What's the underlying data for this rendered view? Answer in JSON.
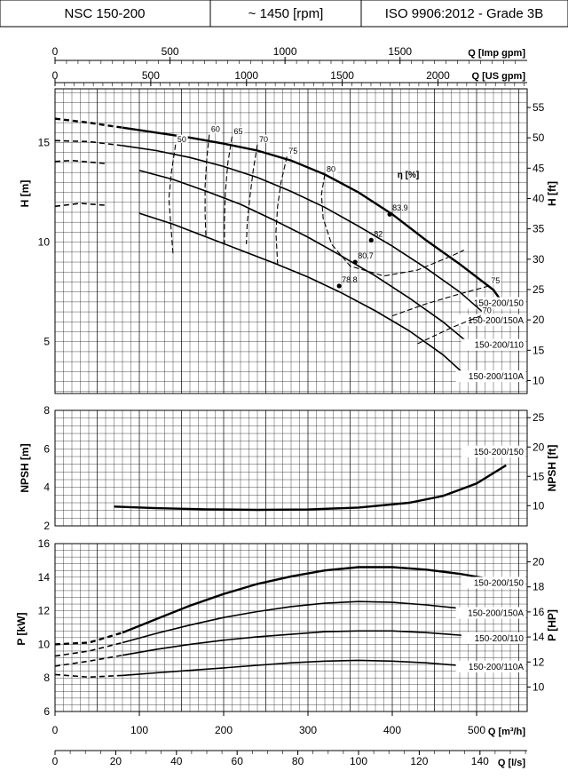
{
  "header": {
    "model": "NSC 150-200",
    "speed": "~ 1450 [rpm]",
    "standard": "ISO 9906:2012 - Grade 3B"
  },
  "colors": {
    "line": "#000000",
    "grid": "#000000",
    "background": "#ffffff"
  },
  "chart_data": [
    {
      "id": "head",
      "type": "line",
      "x_unit": "Q [m³/h]",
      "xlim": [
        0,
        560
      ],
      "ylim": [
        2.4,
        17.7
      ],
      "ylabel": "H [m]",
      "y_ticks": [
        5,
        10,
        15
      ],
      "y2label": "H [ft]",
      "y2_ticks": [
        10,
        15,
        20,
        25,
        30,
        35,
        40,
        45,
        50,
        55
      ],
      "top_axes": [
        {
          "label": "Q [Imp gpm]",
          "ticks": [
            0,
            500,
            1000,
            1500
          ]
        },
        {
          "label": "Q [US gpm]",
          "ticks": [
            0,
            500,
            1000,
            1500,
            2000
          ]
        }
      ],
      "efficiency_label": "η [%]",
      "series": [
        {
          "name": "150-200/150",
          "x": [
            0,
            40,
            80,
            120,
            160,
            200,
            240,
            280,
            320,
            360,
            400,
            440,
            480,
            520,
            535
          ],
          "y": [
            16.2,
            16.0,
            15.75,
            15.5,
            15.25,
            14.95,
            14.6,
            14.1,
            13.4,
            12.5,
            11.4,
            10.1,
            8.9,
            7.6,
            6.7
          ],
          "label_value": "150-200/150"
        },
        {
          "name": "150-200/150A",
          "x": [
            0,
            40,
            80,
            120,
            160,
            200,
            240,
            280,
            320,
            360,
            400,
            440,
            480,
            515
          ],
          "y": [
            15.1,
            15.05,
            14.85,
            14.6,
            14.25,
            13.8,
            13.25,
            12.55,
            11.75,
            10.8,
            9.8,
            8.7,
            7.5,
            6.2
          ],
          "label_value": "150-200/150A"
        },
        {
          "name": "150-200/110",
          "x": [
            0,
            20,
            60,
            100,
            140,
            180,
            220,
            260,
            300,
            340,
            380,
            420,
            460,
            500
          ],
          "y": [
            14.05,
            14.1,
            13.95,
            13.6,
            13.15,
            12.55,
            11.9,
            11.1,
            10.25,
            9.3,
            8.3,
            7.2,
            6.0,
            4.6
          ],
          "label_value": "150-200/110"
        },
        {
          "name": "150-200/110A",
          "x": [
            0,
            30,
            60,
            100,
            140,
            180,
            220,
            260,
            300,
            340,
            380,
            420,
            460,
            490
          ],
          "y": [
            11.8,
            11.95,
            11.85,
            11.45,
            10.9,
            10.25,
            9.6,
            8.95,
            8.25,
            7.45,
            6.55,
            5.55,
            4.35,
            3.2
          ],
          "label_value": "150-200/110A"
        }
      ],
      "series_dashed_prefix_x": 80,
      "efficiency_curves": [
        {
          "label": "50",
          "x": [
            143,
            138,
            135,
            137,
            140
          ],
          "y": [
            14.9,
            13.5,
            12.2,
            11.0,
            9.4
          ]
        },
        {
          "label": "60",
          "x": [
            183,
            180,
            178,
            178,
            179
          ],
          "y": [
            15.4,
            14.2,
            12.8,
            11.4,
            10.3
          ]
        },
        {
          "label": "65",
          "x": [
            210,
            205,
            202,
            201,
            201
          ],
          "y": [
            15.3,
            14.0,
            12.5,
            11.1,
            9.9
          ]
        },
        {
          "label": "70",
          "x": [
            240,
            235,
            231,
            228,
            227
          ],
          "y": [
            14.9,
            13.6,
            12.2,
            11.0,
            9.9
          ]
        },
        {
          "label": "75",
          "x": [
            275,
            268,
            264,
            262,
            264
          ],
          "y": [
            14.3,
            13.0,
            11.8,
            10.5,
            8.9
          ]
        },
        {
          "label": "80",
          "x": [
            320,
            316,
            318,
            328,
            350,
            390,
            430,
            470,
            485
          ],
          "y": [
            13.4,
            12.4,
            11.2,
            9.9,
            8.8,
            8.3,
            8.6,
            9.3,
            9.6
          ]
        },
        {
          "label": "75",
          "x": [
            400,
            440,
            480,
            515
          ],
          "y": [
            6.3,
            6.9,
            7.4,
            7.8
          ]
        },
        {
          "label": "70",
          "x": [
            430,
            470,
            505
          ],
          "y": [
            4.9,
            5.7,
            6.3
          ]
        }
      ],
      "bep_points": [
        {
          "label": "83.9",
          "x": 397,
          "y": 11.4
        },
        {
          "label": "82",
          "x": 375,
          "y": 10.1
        },
        {
          "label": "80.7",
          "x": 356,
          "y": 9.0
        },
        {
          "label": "78.8",
          "x": 337,
          "y": 7.8
        }
      ]
    },
    {
      "id": "npsh",
      "type": "line",
      "x_unit": "Q [m³/h]",
      "xlim": [
        0,
        560
      ],
      "ylim": [
        2,
        8
      ],
      "ylabel": "NPSH [m]",
      "y_ticks": [
        2,
        4,
        6,
        8
      ],
      "y2label": "NPSH [ft]",
      "y2_ticks": [
        10,
        15,
        20,
        25
      ],
      "series": [
        {
          "name": "150-200/150",
          "x": [
            70,
            120,
            180,
            240,
            300,
            360,
            420,
            460,
            500,
            535
          ],
          "y": [
            3.0,
            2.92,
            2.86,
            2.83,
            2.85,
            2.95,
            3.2,
            3.55,
            4.2,
            5.15
          ],
          "label_value": "150-200/150"
        }
      ]
    },
    {
      "id": "power",
      "type": "line",
      "x_unit": "Q [m³/h]",
      "xlim": [
        0,
        560
      ],
      "ylim": [
        6,
        16
      ],
      "ylabel": "P [kW]",
      "y_ticks": [
        6,
        8,
        10,
        12,
        14,
        16
      ],
      "y2label": "P [HP]",
      "y2_ticks": [
        8,
        10,
        12,
        14,
        16,
        18,
        20
      ],
      "series": [
        {
          "name": "150-200/150",
          "x": [
            0,
            40,
            80,
            120,
            160,
            200,
            240,
            280,
            320,
            360,
            400,
            440,
            480,
            520,
            535
          ],
          "y": [
            10.0,
            10.1,
            10.7,
            11.5,
            12.3,
            13.0,
            13.6,
            14.05,
            14.4,
            14.6,
            14.6,
            14.45,
            14.2,
            13.85,
            13.7
          ],
          "label_value": "150-200/150"
        },
        {
          "name": "150-200/150A",
          "x": [
            0,
            40,
            80,
            120,
            160,
            200,
            240,
            280,
            320,
            360,
            400,
            440,
            480,
            515
          ],
          "y": [
            9.3,
            9.6,
            10.1,
            10.65,
            11.15,
            11.6,
            11.95,
            12.25,
            12.45,
            12.55,
            12.5,
            12.35,
            12.15,
            11.9
          ],
          "label_value": "150-200/150A"
        },
        {
          "name": "150-200/110",
          "x": [
            0,
            40,
            80,
            120,
            160,
            200,
            240,
            280,
            320,
            360,
            400,
            440,
            480,
            505
          ],
          "y": [
            8.7,
            9.0,
            9.35,
            9.7,
            10.0,
            10.25,
            10.45,
            10.6,
            10.75,
            10.8,
            10.8,
            10.7,
            10.55,
            10.4
          ],
          "label_value": "150-200/110"
        },
        {
          "name": "150-200/110A",
          "x": [
            0,
            40,
            80,
            120,
            160,
            200,
            240,
            280,
            320,
            360,
            400,
            440,
            490
          ],
          "y": [
            8.2,
            8.05,
            8.15,
            8.3,
            8.45,
            8.6,
            8.75,
            8.9,
            9.0,
            9.05,
            9.0,
            8.9,
            8.7
          ],
          "label_value": "150-200/110A"
        }
      ],
      "series_dashed_prefix_x": 80
    }
  ],
  "bottom_axes": [
    {
      "label": "Q [m³/h]",
      "ticks": [
        0,
        100,
        200,
        300,
        400,
        500
      ]
    },
    {
      "label": "Q [l/s]",
      "ticks": [
        0,
        20,
        40,
        60,
        80,
        100,
        120,
        140
      ]
    }
  ]
}
